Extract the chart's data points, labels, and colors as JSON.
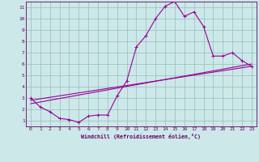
{
  "xlabel": "Windchill (Refroidissement éolien,°C)",
  "bg_color": "#cce8e8",
  "line_color": "#990099",
  "grid_color": "#99bbbb",
  "text_color": "#660066",
  "xlim": [
    -0.5,
    23.5
  ],
  "ylim": [
    0.5,
    11.5
  ],
  "xticks": [
    0,
    1,
    2,
    3,
    4,
    5,
    6,
    7,
    8,
    9,
    10,
    11,
    12,
    13,
    14,
    15,
    16,
    17,
    18,
    19,
    20,
    21,
    22,
    23
  ],
  "yticks": [
    1,
    2,
    3,
    4,
    5,
    6,
    7,
    8,
    9,
    10,
    11
  ],
  "curve1_x": [
    0,
    1,
    2,
    3,
    4,
    5,
    6,
    7,
    8,
    9,
    10,
    11,
    12,
    13,
    14,
    15,
    16,
    17,
    18,
    19,
    20,
    21,
    22,
    23
  ],
  "curve1_y": [
    3.0,
    2.2,
    1.8,
    1.2,
    1.1,
    0.85,
    1.4,
    1.5,
    1.5,
    3.2,
    4.5,
    7.5,
    8.5,
    10.0,
    11.1,
    11.5,
    10.2,
    10.6,
    9.3,
    6.7,
    6.7,
    7.0,
    6.3,
    5.8
  ],
  "curve2_x": [
    0,
    23
  ],
  "curve2_y": [
    2.8,
    5.8
  ],
  "curve3_x": [
    0,
    23
  ],
  "curve3_y": [
    2.5,
    6.0
  ]
}
